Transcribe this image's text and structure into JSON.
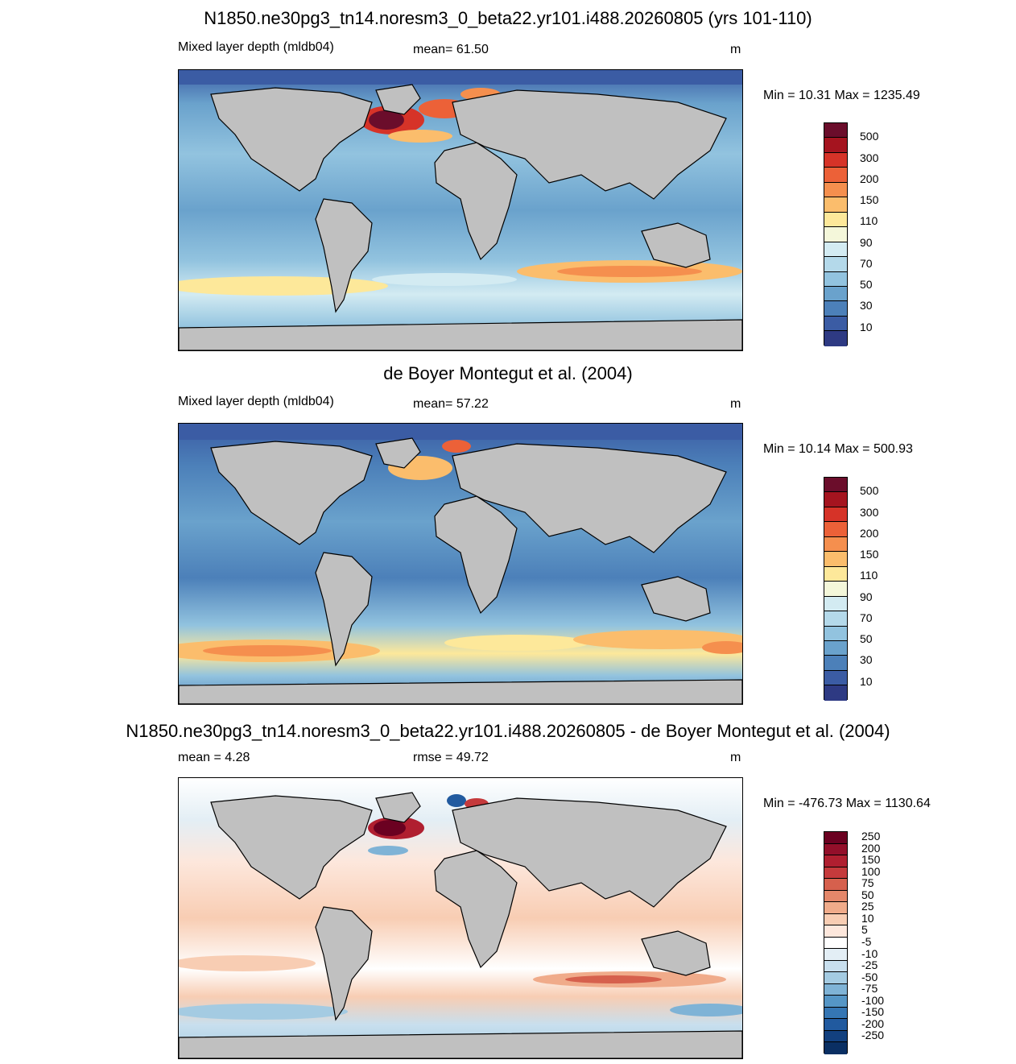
{
  "panels": [
    {
      "title": "N1850.ne30pg3_tn14.noresm3_0_beta22.yr101.i488.20260805 (yrs 101-110)",
      "left_label": "Mixed layer depth (mldb04)",
      "center_label": "mean=  61.50",
      "units": "m",
      "minmax": "Min =  10.31 Max = 1235.49",
      "colorbar": {
        "labels": [
          "500",
          "300",
          "200",
          "150",
          "110",
          "90",
          "70",
          "50",
          "30",
          "10"
        ],
        "colors": [
          "#6b0d2b",
          "#a5141f",
          "#d63328",
          "#ec6138",
          "#f58f4e",
          "#fbbd6c",
          "#fde89a",
          "#f4f7da",
          "#d3ebf2",
          "#b4d9ea",
          "#92c3df",
          "#6aa2cc",
          "#4c80b9",
          "#3b5ca4",
          "#2e3a83"
        ]
      }
    },
    {
      "title": "de Boyer Montegut et al. (2004)",
      "left_label": "Mixed layer depth (mldb04)",
      "center_label": "mean=  57.22",
      "units": "m",
      "minmax": "Min =  10.14 Max = 500.93",
      "colorbar": {
        "labels": [
          "500",
          "300",
          "200",
          "150",
          "110",
          "90",
          "70",
          "50",
          "30",
          "10"
        ],
        "colors": [
          "#6b0d2b",
          "#a5141f",
          "#d63328",
          "#ec6138",
          "#f58f4e",
          "#fbbd6c",
          "#fde89a",
          "#f4f7da",
          "#d3ebf2",
          "#b4d9ea",
          "#92c3df",
          "#6aa2cc",
          "#4c80b9",
          "#3b5ca4",
          "#2e3a83"
        ]
      }
    },
    {
      "title": "N1850.ne30pg3_tn14.noresm3_0_beta22.yr101.i488.20260805 - de Boyer Montegut et al. (2004)",
      "left_label": "mean =   4.28",
      "center_label": "rmse =  49.72",
      "units": "m",
      "minmax": "Min = -476.73 Max = 1130.64",
      "colorbar": {
        "labels": [
          "250",
          "200",
          "150",
          "100",
          "75",
          "50",
          "25",
          "10",
          "5",
          "-5",
          "-10",
          "-25",
          "-50",
          "-75",
          "-100",
          "-150",
          "-200",
          "-250"
        ],
        "colors": [
          "#6b0121",
          "#930f2a",
          "#b01f30",
          "#c53a3c",
          "#d6604d",
          "#e4876a",
          "#f0ab8a",
          "#f8cdb3",
          "#fde7dc",
          "#ffffff",
          "#e3eef5",
          "#c8dfee",
          "#a4cbe2",
          "#7fb3d6",
          "#5596c6",
          "#3576b4",
          "#215a9f",
          "#12407f",
          "#0a2f63"
        ]
      }
    }
  ],
  "colors": {
    "land": "#c0c0c0",
    "coast": "#000000"
  }
}
